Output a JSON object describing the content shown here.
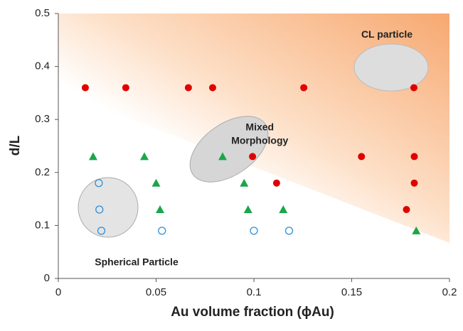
{
  "chart_data": {
    "type": "scatter",
    "xlabel": "Au volume fraction (ϕAu)",
    "ylabel": "d/L",
    "xlim": [
      0,
      0.2
    ],
    "xticks": [
      0,
      0.05,
      0.1,
      0.15,
      0.2
    ],
    "ylim": [
      0,
      0.5
    ],
    "yticks": [
      0,
      0.1,
      0.2,
      0.3,
      0.4,
      0.5
    ],
    "series": [
      {
        "color": "#e00000",
        "marker": "circle",
        "x": [
          0.0138,
          0.0345,
          0.0665,
          0.0789,
          0.1255,
          0.1818,
          0.0993,
          0.155,
          0.182,
          0.1116,
          0.182,
          0.178
        ],
        "values": [
          0.36,
          0.36,
          0.36,
          0.36,
          0.36,
          0.36,
          0.23,
          0.23,
          0.23,
          0.18,
          0.18,
          0.13
        ]
      },
      {
        "color": "#1aa64a",
        "marker": "triangle",
        "x": [
          0.0178,
          0.044,
          0.084,
          0.05,
          0.095,
          0.052,
          0.097,
          0.115,
          0.183
        ],
        "values": [
          0.23,
          0.23,
          0.23,
          0.18,
          0.18,
          0.13,
          0.13,
          0.13,
          0.09
        ]
      },
      {
        "color": "#2f8fd8",
        "marker": "open-circle",
        "x": [
          0.0207,
          0.021,
          0.022,
          0.053,
          0.1,
          0.118
        ],
        "values": [
          0.18,
          0.13,
          0.09,
          0.09,
          0.09,
          0.09
        ]
      }
    ],
    "annotations": [
      {
        "lines": [
          "CL particle"
        ],
        "x": 0.168,
        "y": 0.46
      },
      {
        "lines": [
          "Mixed",
          "Morphology"
        ],
        "x": 0.103,
        "y": 0.285
      },
      {
        "lines": [
          "Spherical Particle"
        ],
        "x": 0.04,
        "y": 0.03
      }
    ]
  }
}
